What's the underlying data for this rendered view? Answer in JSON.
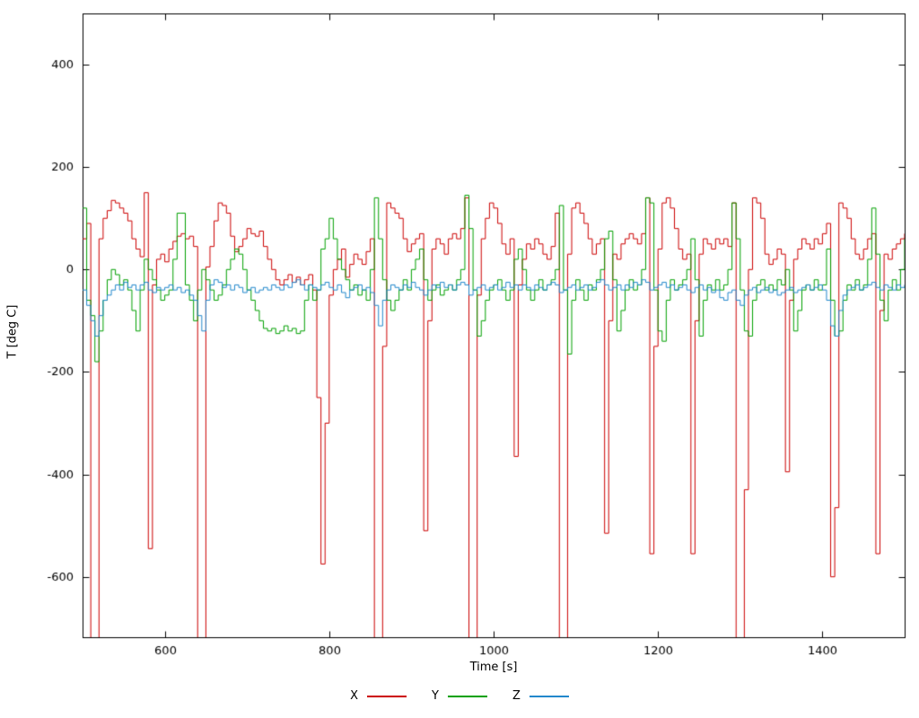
{
  "chart_data": {
    "type": "line",
    "title": "",
    "xlabel": "Time [s]",
    "ylabel": "T [deg C]",
    "xlim": [
      500,
      1500
    ],
    "ylim": [
      -718,
      500
    ],
    "x_ticks": [
      600,
      800,
      1000,
      1200,
      1400
    ],
    "y_ticks": [
      -600,
      -400,
      -200,
      0,
      200,
      400
    ],
    "grid": false,
    "legend_position": "bottom-center",
    "interpolation": "step",
    "x_start": 500,
    "x_step": 5,
    "series": [
      {
        "name": "X",
        "color": "#cc0000",
        "values": [
          60,
          90,
          -720,
          -720,
          60,
          100,
          115,
          135,
          130,
          120,
          110,
          95,
          60,
          40,
          25,
          150,
          -545,
          -30,
          20,
          30,
          15,
          40,
          55,
          65,
          70,
          60,
          65,
          45,
          -720,
          -720,
          5,
          45,
          95,
          130,
          125,
          110,
          65,
          35,
          45,
          60,
          80,
          70,
          65,
          75,
          45,
          20,
          0,
          -20,
          -30,
          -20,
          -10,
          -25,
          -15,
          -30,
          -20,
          -10,
          -40,
          -250,
          -575,
          -300,
          -50,
          0,
          20,
          40,
          -15,
          10,
          30,
          20,
          10,
          35,
          60,
          -720,
          -720,
          -150,
          130,
          120,
          110,
          100,
          60,
          35,
          50,
          60,
          70,
          -510,
          -100,
          40,
          60,
          50,
          30,
          60,
          70,
          60,
          80,
          140,
          -720,
          -720,
          -50,
          60,
          100,
          130,
          120,
          90,
          50,
          30,
          60,
          -365,
          -30,
          20,
          50,
          40,
          60,
          50,
          30,
          20,
          45,
          110,
          -720,
          -720,
          30,
          120,
          130,
          110,
          90,
          60,
          30,
          50,
          60,
          -515,
          -100,
          30,
          20,
          50,
          60,
          70,
          60,
          50,
          70,
          140,
          -555,
          -150,
          40,
          130,
          140,
          120,
          80,
          40,
          20,
          30,
          -555,
          -100,
          30,
          60,
          50,
          40,
          60,
          50,
          60,
          45,
          130,
          -720,
          -720,
          -430,
          0,
          140,
          130,
          100,
          30,
          10,
          20,
          40,
          30,
          -395,
          -60,
          20,
          40,
          60,
          50,
          40,
          60,
          50,
          70,
          90,
          -600,
          -465,
          130,
          120,
          100,
          60,
          30,
          20,
          40,
          60,
          70,
          -555,
          -80,
          30,
          20,
          40,
          50,
          60,
          70
        ]
      },
      {
        "name": "Y",
        "color": "#00a000",
        "values": [
          120,
          -60,
          -90,
          -180,
          -120,
          -60,
          -20,
          0,
          -10,
          -30,
          -20,
          -40,
          -80,
          -120,
          -40,
          20,
          0,
          -20,
          -40,
          -60,
          -50,
          -40,
          20,
          110,
          110,
          -30,
          -60,
          -100,
          -40,
          0,
          -20,
          -40,
          -60,
          -50,
          -30,
          0,
          20,
          40,
          30,
          0,
          -40,
          -60,
          -80,
          -100,
          -115,
          -120,
          -115,
          -125,
          -120,
          -110,
          -120,
          -115,
          -125,
          -120,
          -60,
          -30,
          -60,
          -40,
          40,
          60,
          100,
          60,
          20,
          0,
          -20,
          -40,
          -30,
          -50,
          -40,
          -60,
          0,
          140,
          60,
          -20,
          -60,
          -80,
          -60,
          -40,
          -20,
          -40,
          0,
          20,
          40,
          -20,
          -60,
          -40,
          -30,
          -50,
          -40,
          -30,
          -40,
          -20,
          0,
          145,
          80,
          -40,
          -130,
          -100,
          -60,
          -40,
          -30,
          -20,
          -40,
          -60,
          -40,
          20,
          40,
          0,
          -40,
          -60,
          -40,
          -20,
          -40,
          -30,
          -20,
          0,
          125,
          -40,
          -165,
          -60,
          -20,
          -40,
          -60,
          -30,
          -40,
          -20,
          0,
          60,
          75,
          -20,
          -120,
          -80,
          -40,
          -20,
          -40,
          -30,
          0,
          140,
          130,
          -40,
          -120,
          -140,
          -60,
          -20,
          -40,
          -30,
          -20,
          0,
          60,
          -20,
          -130,
          -60,
          -30,
          -40,
          -20,
          -40,
          -30,
          0,
          130,
          60,
          -40,
          -120,
          -130,
          -60,
          -30,
          -20,
          -40,
          -30,
          -40,
          -20,
          -30,
          0,
          -40,
          -120,
          -80,
          -40,
          -30,
          -40,
          -20,
          -40,
          -30,
          40,
          -60,
          -130,
          -120,
          -60,
          -30,
          -40,
          -20,
          -40,
          -30,
          20,
          120,
          30,
          -60,
          -100,
          -40,
          -20,
          -40,
          0,
          60
        ]
      },
      {
        "name": "Z",
        "color": "#2288cc",
        "values": [
          -40,
          -70,
          -100,
          -130,
          -90,
          -60,
          -50,
          -40,
          -30,
          -40,
          -25,
          -35,
          -30,
          -40,
          -30,
          -25,
          -40,
          -45,
          -35,
          -40,
          -35,
          -30,
          -40,
          -35,
          -45,
          -40,
          -50,
          -60,
          -90,
          -120,
          -60,
          -30,
          -20,
          -25,
          -35,
          -30,
          -40,
          -30,
          -35,
          -45,
          -40,
          -35,
          -45,
          -40,
          -35,
          -40,
          -30,
          -35,
          -40,
          -30,
          -35,
          -25,
          -20,
          -30,
          -40,
          -30,
          -35,
          -40,
          -30,
          -25,
          -35,
          -40,
          -30,
          -45,
          -55,
          -40,
          -35,
          -30,
          -40,
          -35,
          -45,
          -70,
          -110,
          -60,
          -40,
          -30,
          -35,
          -40,
          -30,
          -35,
          -25,
          -35,
          -40,
          -50,
          -40,
          -30,
          -35,
          -25,
          -35,
          -30,
          -40,
          -30,
          -25,
          -30,
          -50,
          -40,
          -35,
          -30,
          -40,
          -35,
          -30,
          -40,
          -35,
          -25,
          -35,
          -30,
          -40,
          -30,
          -35,
          -40,
          -30,
          -35,
          -40,
          -30,
          -25,
          -30,
          -45,
          -40,
          -35,
          -30,
          -40,
          -35,
          -30,
          -40,
          -35,
          -25,
          -20,
          -30,
          -40,
          -35,
          -30,
          -40,
          -30,
          -35,
          -25,
          -30,
          -20,
          -25,
          -40,
          -35,
          -30,
          -25,
          -35,
          -30,
          -40,
          -35,
          -30,
          -40,
          -45,
          -35,
          -30,
          -40,
          -35,
          -45,
          -40,
          -55,
          -60,
          -45,
          -40,
          -60,
          -70,
          -50,
          -40,
          -35,
          -45,
          -40,
          -35,
          -45,
          -40,
          -50,
          -45,
          -40,
          -35,
          -45,
          -40,
          -35,
          -30,
          -40,
          -35,
          -30,
          -40,
          -60,
          -110,
          -130,
          -80,
          -50,
          -40,
          -35,
          -30,
          -40,
          -35,
          -30,
          -25,
          -35,
          -40,
          -30,
          -35,
          -40,
          -30,
          -35,
          -30
        ]
      }
    ]
  }
}
